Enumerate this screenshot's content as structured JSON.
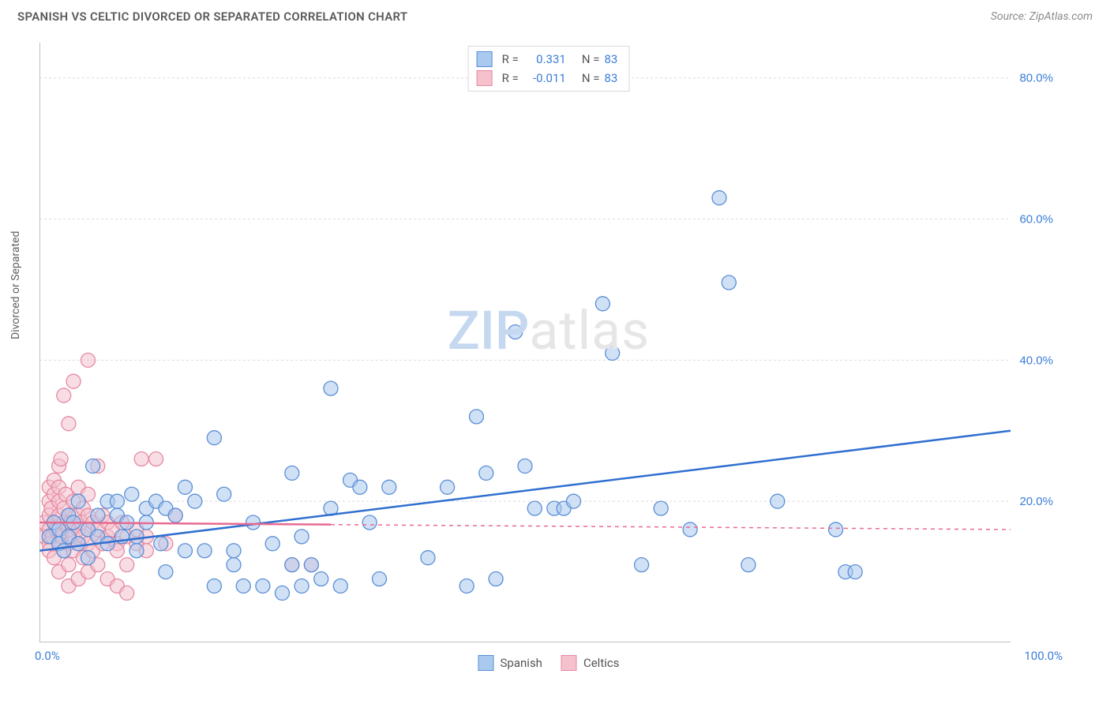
{
  "title": "SPANISH VS CELTIC DIVORCED OR SEPARATED CORRELATION CHART",
  "source": "Source: ZipAtlas.com",
  "y_axis_label": "Divorced or Separated",
  "watermark": {
    "part1": "ZIP",
    "part2": "atlas"
  },
  "chart": {
    "type": "scatter",
    "xlim": [
      0,
      100
    ],
    "ylim": [
      0,
      85
    ],
    "x_ticks": [
      0,
      10,
      20,
      30,
      40,
      50,
      60,
      70,
      80,
      90,
      100
    ],
    "y_gridlines": [
      20,
      40,
      60,
      80
    ],
    "x_axis_labels": [
      {
        "x": 0,
        "text": "0.0%"
      },
      {
        "x": 100,
        "text": "100.0%"
      }
    ],
    "y_axis_labels": [
      {
        "y": 20,
        "text": "20.0%"
      },
      {
        "y": 40,
        "text": "40.0%"
      },
      {
        "y": 60,
        "text": "60.0%"
      },
      {
        "y": 80,
        "text": "80.0%"
      }
    ],
    "grid_color": "#dcdcdc",
    "grid_dash": "3,3",
    "axis_color": "#808080",
    "background_color": "#ffffff",
    "marker_radius": 9,
    "marker_opacity": 0.55,
    "series": [
      {
        "name": "Spanish",
        "color_fill": "#a9c9ee",
        "color_stroke": "#5b8fd6",
        "r_value": "0.331",
        "n_value": "83",
        "trend": {
          "x1": 0,
          "y1": 13,
          "x2": 100,
          "y2": 30,
          "solid_until_x": 100,
          "color": "#2f6fd0",
          "width": 2.5
        },
        "points": [
          [
            1,
            15
          ],
          [
            1.5,
            17
          ],
          [
            2,
            14
          ],
          [
            2,
            16
          ],
          [
            2.5,
            13
          ],
          [
            3,
            18
          ],
          [
            3,
            15
          ],
          [
            3.5,
            17
          ],
          [
            4,
            14
          ],
          [
            4,
            20
          ],
          [
            5,
            16
          ],
          [
            5,
            12
          ],
          [
            5.5,
            25
          ],
          [
            6,
            15
          ],
          [
            6,
            18
          ],
          [
            7,
            14
          ],
          [
            7,
            20
          ],
          [
            8,
            18
          ],
          [
            8,
            20
          ],
          [
            8.5,
            15
          ],
          [
            9,
            17
          ],
          [
            9.5,
            21
          ],
          [
            10,
            15
          ],
          [
            10,
            13
          ],
          [
            11,
            19
          ],
          [
            11,
            17
          ],
          [
            12,
            20
          ],
          [
            12.5,
            14
          ],
          [
            13,
            19
          ],
          [
            13,
            10
          ],
          [
            14,
            18
          ],
          [
            15,
            22
          ],
          [
            15,
            13
          ],
          [
            16,
            20
          ],
          [
            17,
            13
          ],
          [
            18,
            29
          ],
          [
            18,
            8
          ],
          [
            19,
            21
          ],
          [
            20,
            11
          ],
          [
            20,
            13
          ],
          [
            21,
            8
          ],
          [
            22,
            17
          ],
          [
            23,
            8
          ],
          [
            24,
            14
          ],
          [
            25,
            7
          ],
          [
            26,
            11
          ],
          [
            26,
            24
          ],
          [
            27,
            8
          ],
          [
            27,
            15
          ],
          [
            28,
            11
          ],
          [
            29,
            9
          ],
          [
            30,
            19
          ],
          [
            30,
            36
          ],
          [
            31,
            8
          ],
          [
            32,
            23
          ],
          [
            33,
            22
          ],
          [
            34,
            17
          ],
          [
            35,
            9
          ],
          [
            36,
            22
          ],
          [
            40,
            12
          ],
          [
            42,
            22
          ],
          [
            44,
            8
          ],
          [
            45,
            32
          ],
          [
            46,
            24
          ],
          [
            47,
            9
          ],
          [
            49,
            44
          ],
          [
            50,
            25
          ],
          [
            51,
            19
          ],
          [
            53,
            19
          ],
          [
            54,
            19
          ],
          [
            55,
            20
          ],
          [
            58,
            48
          ],
          [
            59,
            41
          ],
          [
            62,
            11
          ],
          [
            64,
            19
          ],
          [
            67,
            16
          ],
          [
            70,
            63
          ],
          [
            71,
            51
          ],
          [
            73,
            11
          ],
          [
            82,
            16
          ],
          [
            83,
            10
          ],
          [
            84,
            10
          ],
          [
            76,
            20
          ]
        ]
      },
      {
        "name": "Celtics",
        "color_fill": "#f4c1cd",
        "color_stroke": "#e58aa2",
        "r_value": "-0.011",
        "n_value": "83",
        "trend": {
          "x1": 0,
          "y1": 17,
          "x2": 100,
          "y2": 16,
          "solid_until_x": 30,
          "color": "#e76b90",
          "width": 2.5
        },
        "points": [
          [
            0.5,
            15
          ],
          [
            0.5,
            17
          ],
          [
            1,
            14
          ],
          [
            1,
            16
          ],
          [
            1,
            20
          ],
          [
            1,
            22
          ],
          [
            1,
            18
          ],
          [
            1,
            13
          ],
          [
            1.2,
            19
          ],
          [
            1.3,
            15
          ],
          [
            1.5,
            17
          ],
          [
            1.5,
            21
          ],
          [
            1.5,
            12
          ],
          [
            1.5,
            23
          ],
          [
            1.7,
            16
          ],
          [
            2,
            14
          ],
          [
            2,
            18
          ],
          [
            2,
            20
          ],
          [
            2,
            10
          ],
          [
            2,
            25
          ],
          [
            2,
            22
          ],
          [
            2.2,
            26
          ],
          [
            2.3,
            15
          ],
          [
            2.5,
            17
          ],
          [
            2.5,
            13
          ],
          [
            2.5,
            19
          ],
          [
            2.5,
            35
          ],
          [
            2.7,
            21
          ],
          [
            3,
            16
          ],
          [
            3,
            14
          ],
          [
            3,
            18
          ],
          [
            3,
            11
          ],
          [
            3,
            8
          ],
          [
            3,
            31
          ],
          [
            3.2,
            17
          ],
          [
            3.5,
            15
          ],
          [
            3.5,
            20
          ],
          [
            3.5,
            13
          ],
          [
            3.5,
            37
          ],
          [
            4,
            16
          ],
          [
            4,
            18
          ],
          [
            4,
            14
          ],
          [
            4,
            9
          ],
          [
            4,
            22
          ],
          [
            4.3,
            17
          ],
          [
            4.5,
            15
          ],
          [
            4.5,
            19
          ],
          [
            4.5,
            12
          ],
          [
            5,
            16
          ],
          [
            5,
            14
          ],
          [
            5,
            18
          ],
          [
            5,
            10
          ],
          [
            5,
            21
          ],
          [
            5.5,
            17
          ],
          [
            5.5,
            13
          ],
          [
            6,
            15
          ],
          [
            6,
            16
          ],
          [
            6,
            11
          ],
          [
            6.5,
            14
          ],
          [
            6.5,
            18
          ],
          [
            7,
            15
          ],
          [
            7,
            17
          ],
          [
            7,
            9
          ],
          [
            7.5,
            16
          ],
          [
            8,
            14
          ],
          [
            8,
            13
          ],
          [
            8.5,
            17
          ],
          [
            9,
            15
          ],
          [
            9,
            11
          ],
          [
            10,
            16
          ],
          [
            10,
            14
          ],
          [
            10.5,
            26
          ],
          [
            11,
            15
          ],
          [
            12,
            26
          ],
          [
            13,
            14
          ],
          [
            14,
            18
          ],
          [
            5,
            40
          ],
          [
            8,
            8
          ],
          [
            9,
            7
          ],
          [
            6,
            25
          ],
          [
            11,
            13
          ],
          [
            26,
            11
          ],
          [
            28,
            11
          ]
        ]
      }
    ]
  },
  "legend_bottom": [
    {
      "label": "Spanish",
      "fill": "#a9c9ee",
      "stroke": "#5b8fd6"
    },
    {
      "label": "Celtics",
      "fill": "#f4c1cd",
      "stroke": "#e58aa2"
    }
  ]
}
